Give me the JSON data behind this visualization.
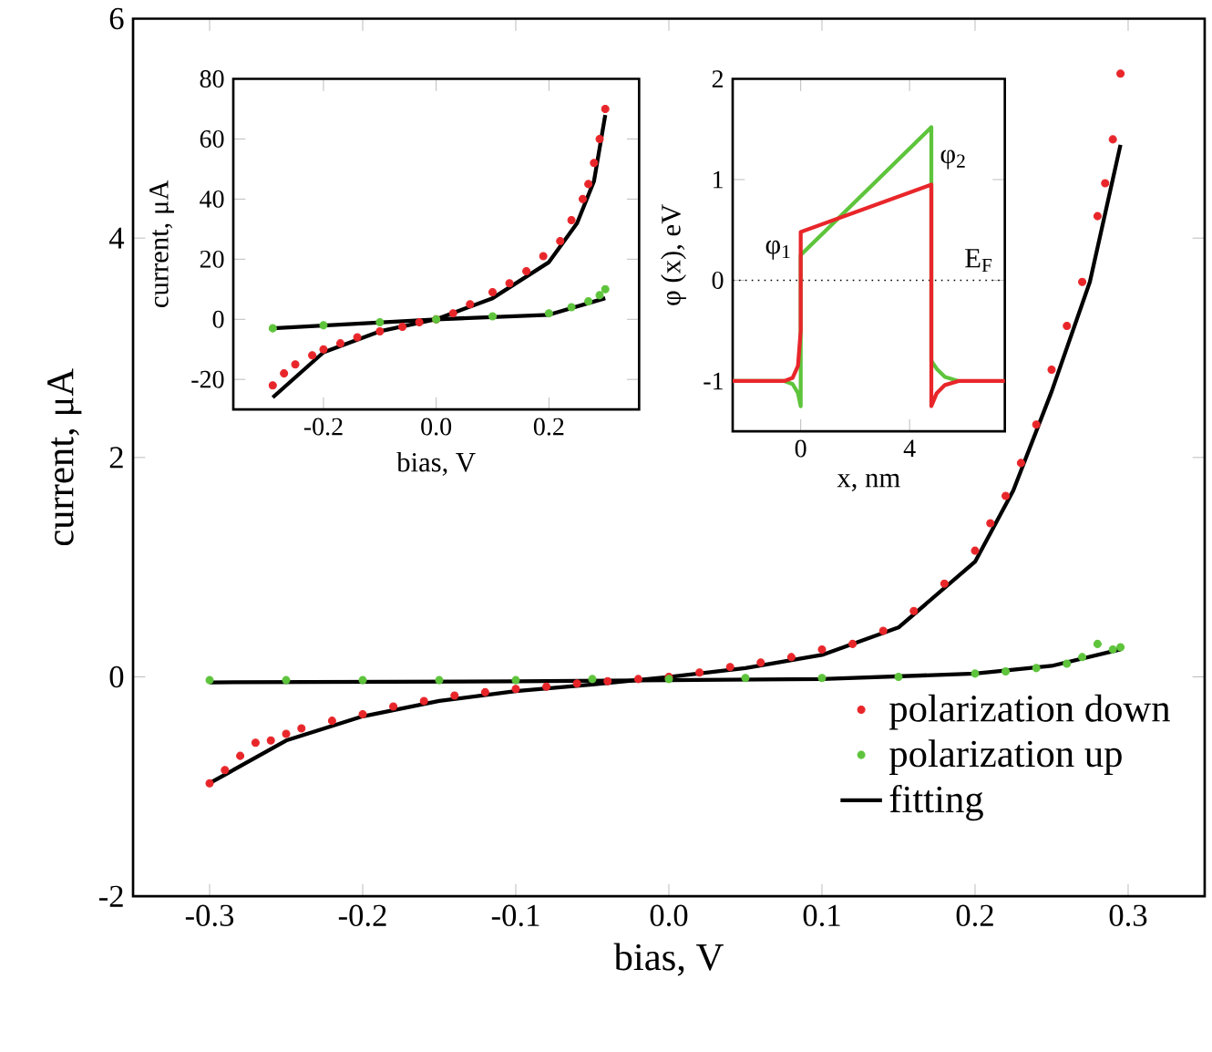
{
  "chart_data": [
    {
      "type": "scatter",
      "xlabel": "bias, V",
      "ylabel": "current, μA",
      "xlim": [
        -0.35,
        0.35
      ],
      "ylim": [
        -2,
        6
      ],
      "xticks": [
        -0.3,
        -0.2,
        -0.1,
        {
          "value": 0,
          "label": "0.0"
        },
        0.1,
        0.2,
        0.3
      ],
      "yticks": [
        -2,
        0,
        2,
        4,
        6
      ],
      "legend": "bottom right",
      "series": [
        {
          "name": "polarization down",
          "marker": "circle",
          "color": "#e8262a",
          "x": [
            -0.3,
            -0.29,
            -0.28,
            -0.27,
            -0.26,
            -0.25,
            -0.24,
            -0.22,
            -0.2,
            -0.18,
            -0.16,
            -0.14,
            -0.12,
            -0.1,
            -0.08,
            -0.06,
            -0.04,
            -0.02,
            0,
            0.02,
            0.04,
            0.06,
            0.08,
            0.1,
            0.12,
            0.14,
            0.16,
            0.18,
            0.2,
            0.21,
            0.22,
            0.23,
            0.24,
            0.25,
            0.26,
            0.27,
            0.28,
            0.285,
            0.29,
            0.295
          ],
          "values": [
            -0.97,
            -0.85,
            -0.72,
            -0.6,
            -0.58,
            -0.52,
            -0.47,
            -0.4,
            -0.34,
            -0.27,
            -0.22,
            -0.17,
            -0.14,
            -0.11,
            -0.09,
            -0.06,
            -0.04,
            -0.02,
            0,
            0.04,
            0.09,
            0.13,
            0.18,
            0.25,
            0.3,
            0.42,
            0.6,
            0.85,
            1.15,
            1.4,
            1.65,
            1.95,
            2.3,
            2.8,
            3.2,
            3.6,
            4.2,
            4.5,
            4.9,
            5.5
          ]
        },
        {
          "name": "polarization up",
          "marker": "circle",
          "color": "#5ec43c",
          "x": [
            -0.3,
            -0.25,
            -0.2,
            -0.15,
            -0.1,
            -0.05,
            0,
            0.05,
            0.1,
            0.15,
            0.2,
            0.22,
            0.24,
            0.26,
            0.27,
            0.28,
            0.29,
            0.295
          ],
          "values": [
            -0.03,
            -0.03,
            -0.03,
            -0.03,
            -0.03,
            -0.02,
            -0.02,
            -0.01,
            -0.01,
            0,
            0.03,
            0.05,
            0.08,
            0.12,
            0.18,
            0.3,
            0.25,
            0.27
          ]
        },
        {
          "name": "fitting",
          "type": "line",
          "color": "#000000",
          "x": [
            -0.3,
            -0.25,
            -0.2,
            -0.15,
            -0.1,
            -0.05,
            0,
            0.05,
            0.1,
            0.15,
            0.2,
            0.225,
            0.25,
            0.275,
            0.295
          ],
          "values": [
            -0.97,
            -0.58,
            -0.36,
            -0.22,
            -0.13,
            -0.07,
            0,
            0.08,
            0.2,
            0.45,
            1.05,
            1.7,
            2.6,
            3.6,
            4.85
          ]
        },
        {
          "type": "line",
          "color": "#000000",
          "x": [
            -0.3,
            -0.1,
            0,
            0.1,
            0.2,
            0.25,
            0.295
          ],
          "values": [
            -0.05,
            -0.04,
            -0.03,
            -0.02,
            0.03,
            0.1,
            0.25
          ]
        }
      ]
    },
    {
      "type": "scatter",
      "xlabel": "bias, V",
      "ylabel": "current, μA",
      "xlim": [
        -0.36,
        0.36
      ],
      "ylim": [
        -30,
        80
      ],
      "xticks": [
        -0.2,
        {
          "value": 0,
          "label": "0.0"
        },
        0.2
      ],
      "yticks": [
        -20,
        0,
        20,
        40,
        60,
        80
      ],
      "series": [
        {
          "marker": "circle",
          "color": "#e8262a",
          "x": [
            -0.29,
            -0.27,
            -0.25,
            -0.22,
            -0.2,
            -0.17,
            -0.14,
            -0.1,
            -0.06,
            -0.03,
            0,
            0.03,
            0.06,
            0.1,
            0.13,
            0.16,
            0.19,
            0.22,
            0.24,
            0.26,
            0.27,
            0.28,
            0.29,
            0.3
          ],
          "values": [
            -22,
            -18,
            -15,
            -12,
            -10,
            -8,
            -6,
            -4,
            -2.5,
            -1,
            0,
            2,
            5,
            9,
            12,
            16,
            21,
            26,
            33,
            40,
            45,
            52,
            60,
            70
          ]
        },
        {
          "marker": "circle",
          "color": "#5ec43c",
          "x": [
            -0.29,
            -0.2,
            -0.1,
            0,
            0.1,
            0.2,
            0.24,
            0.27,
            0.29,
            0.3
          ],
          "values": [
            -3,
            -2,
            -1,
            0,
            1,
            2,
            4,
            6,
            8,
            10
          ]
        },
        {
          "type": "line",
          "color": "#000000",
          "x": [
            -0.29,
            -0.2,
            -0.1,
            0,
            0.1,
            0.2,
            0.25,
            0.28,
            0.3
          ],
          "values": [
            -26,
            -11,
            -4,
            0,
            7,
            19,
            32,
            46,
            68
          ]
        },
        {
          "type": "line",
          "color": "#000000",
          "x": [
            -0.29,
            0,
            0.2,
            0.3
          ],
          "values": [
            -3,
            0,
            1.5,
            7
          ]
        }
      ]
    },
    {
      "type": "line",
      "xlabel": "x, nm",
      "ylabel": "φ (x), eV",
      "xlim": [
        -2.5,
        7.5
      ],
      "ylim": [
        -1.5,
        2
      ],
      "xticks": [
        0,
        4
      ],
      "yticks": [
        -1,
        0,
        1,
        2
      ],
      "ref_lines": [
        {
          "axis": "y",
          "value": 0,
          "line_style": "dotted",
          "color": "#000000"
        }
      ],
      "annotations": [
        {
          "text": "φ$_{1}$",
          "x": 0,
          "y": 0.3
        },
        {
          "text": "φ$_{2}$",
          "x": 4.8,
          "y": 1.2
        },
        {
          "text": "E$_{F}$",
          "x": 7.4,
          "y": 0
        }
      ],
      "series": [
        {
          "color": "#5ec43c",
          "x": [
            -2.5,
            -0.6,
            -0.3,
            -0.1,
            0,
            0,
            4.8,
            4.8,
            5,
            5.3,
            5.8
          ],
          "values": [
            -1,
            -1,
            -1.03,
            -1.12,
            -1.25,
            0.25,
            1.52,
            -0.8,
            -0.88,
            -0.96,
            -1
          ]
        },
        {
          "color": "#e8262a",
          "x": [
            -2.5,
            -0.6,
            -0.3,
            -0.1,
            0,
            0,
            4.8,
            4.8,
            5,
            5.3,
            5.8,
            7.5
          ],
          "values": [
            -1,
            -1,
            -0.97,
            -0.85,
            -0.5,
            0.48,
            0.95,
            -1.25,
            -1.12,
            -1.04,
            -1,
            -1
          ]
        }
      ]
    }
  ]
}
